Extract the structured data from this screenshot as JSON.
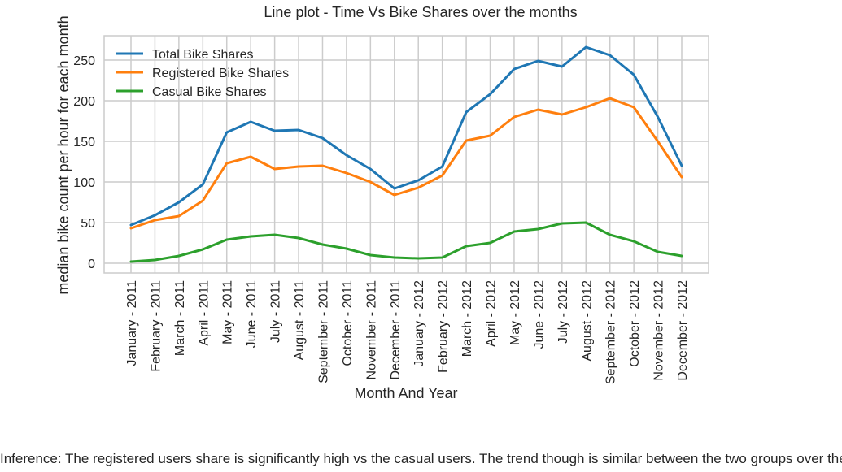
{
  "chart_data": {
    "type": "line",
    "title": "Line plot - Time Vs Bike Shares over the months",
    "xlabel": "Month And Year",
    "ylabel": "median bike count per hour for each month",
    "categories": [
      "January - 2011",
      "February - 2011",
      "March - 2011",
      "April - 2011",
      "May - 2011",
      "June - 2011",
      "July - 2011",
      "August - 2011",
      "September - 2011",
      "October - 2011",
      "November - 2011",
      "December - 2011",
      "January - 2012",
      "February - 2012",
      "March - 2012",
      "April - 2012",
      "May - 2012",
      "June - 2012",
      "July - 2012",
      "August - 2012",
      "September - 2012",
      "October - 2012",
      "November - 2012",
      "December - 2012"
    ],
    "series": [
      {
        "name": "Total Bike Shares",
        "color": "#1f77b4",
        "values": [
          47,
          59,
          75,
          97,
          161,
          174,
          163,
          164,
          154,
          133,
          116,
          92,
          102,
          119,
          186,
          208,
          239,
          249,
          242,
          266,
          256,
          232,
          180,
          120
        ]
      },
      {
        "name": "Registered Bike Shares",
        "color": "#ff7f0e",
        "values": [
          43,
          53,
          58,
          77,
          123,
          131,
          116,
          119,
          120,
          111,
          100,
          84,
          93,
          108,
          151,
          157,
          180,
          189,
          183,
          192,
          203,
          192,
          150,
          106
        ]
      },
      {
        "name": "Casual Bike Shares",
        "color": "#2ca02c",
        "values": [
          2,
          4,
          9,
          17,
          29,
          33,
          35,
          31,
          23,
          18,
          10,
          7,
          6,
          7,
          21,
          25,
          39,
          42,
          49,
          50,
          35,
          27,
          14,
          9
        ]
      }
    ],
    "ylim": [
      -12,
      280
    ],
    "yticks": [
      0,
      50,
      100,
      150,
      200,
      250
    ],
    "grid": true,
    "legend": "top-left"
  },
  "inference": "Inference: The registered users share is significantly high vs the casual users. The trend though is similar between the two groups over the time."
}
